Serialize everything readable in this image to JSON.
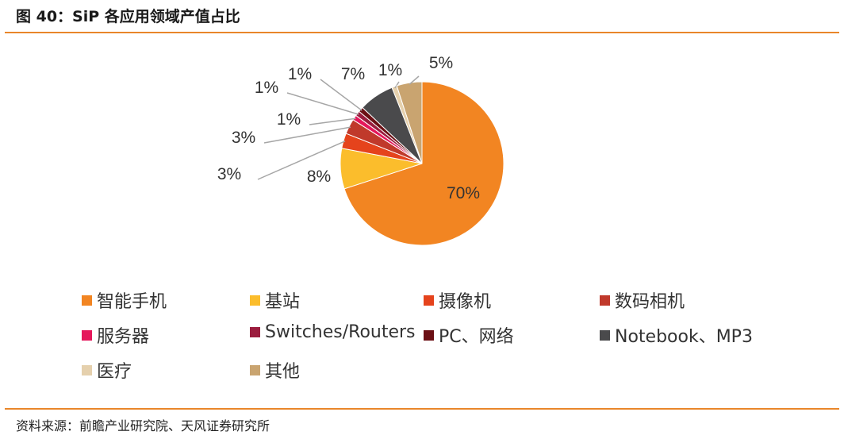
{
  "header": {
    "title": "图 40：SiP 各应用领域产值占比"
  },
  "footer": {
    "source": "资料来源：前瞻产业研究院、天风证券研究所"
  },
  "chart_data": {
    "type": "pie",
    "title": "",
    "legend_placement": "bottom",
    "categories": [
      "智能手机",
      "基站",
      "摄像机",
      "数码相机",
      "服务器",
      "Switches/Routers",
      "PC、网络",
      "Notebook、MP3",
      "医疗",
      "其他"
    ],
    "values": [
      70,
      8,
      3,
      3,
      1,
      1,
      1,
      7,
      1,
      5
    ],
    "labels": [
      "70%",
      "8%",
      "3%",
      "3%",
      "1%",
      "1%",
      "1%",
      "7%",
      "1%",
      "5%"
    ],
    "colors": [
      "#f28522",
      "#fbbd2c",
      "#e5431c",
      "#c0392b",
      "#e5175b",
      "#9b1d3e",
      "#6b0f14",
      "#4a4a4c",
      "#e5d0ad",
      "#c9a470"
    ]
  }
}
